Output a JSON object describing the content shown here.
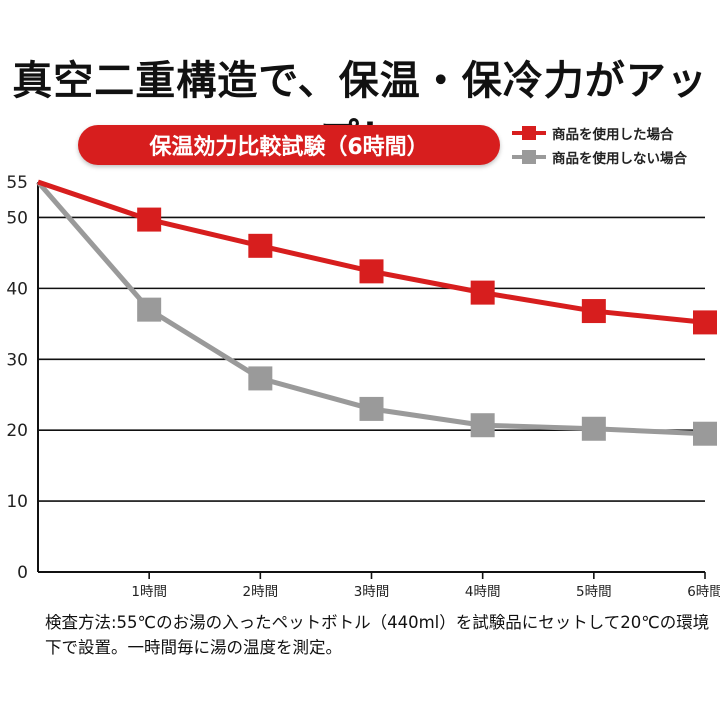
{
  "headline": "真空二重構造で、保温・保冷力がアップ！",
  "note": "検査方法:55℃のお湯の入ったペットボトル（440ml）を試験品にセットして20℃の環境下で設置。一時間毎に湯の温度を測定。",
  "colors": {
    "product": "#d71e1e",
    "no_product": "#9a9a9a",
    "grid": "#111111"
  },
  "chart_data": {
    "type": "line",
    "title": "保温効力比較試験（6時間）",
    "x": [
      0,
      1,
      2,
      3,
      4,
      5,
      6
    ],
    "x_tick_labels": [
      "1時間",
      "2時間",
      "3時間",
      "4時間",
      "5時間",
      "6時間"
    ],
    "y_tick_labels": [
      "0",
      "10",
      "20",
      "30",
      "40",
      "50",
      "55"
    ],
    "ylim": [
      0,
      55
    ],
    "grid": true,
    "legend_position": "top-right",
    "series": [
      {
        "name": "商品を使用した場合",
        "color": "#d71e1e",
        "values": [
          55,
          49.7,
          46,
          42.4,
          39.4,
          36.8,
          35.2
        ]
      },
      {
        "name": "商品を使用しない場合",
        "color": "#9a9a9a",
        "values": [
          55,
          37,
          27.3,
          23,
          20.7,
          20.2,
          19.5
        ]
      }
    ]
  }
}
